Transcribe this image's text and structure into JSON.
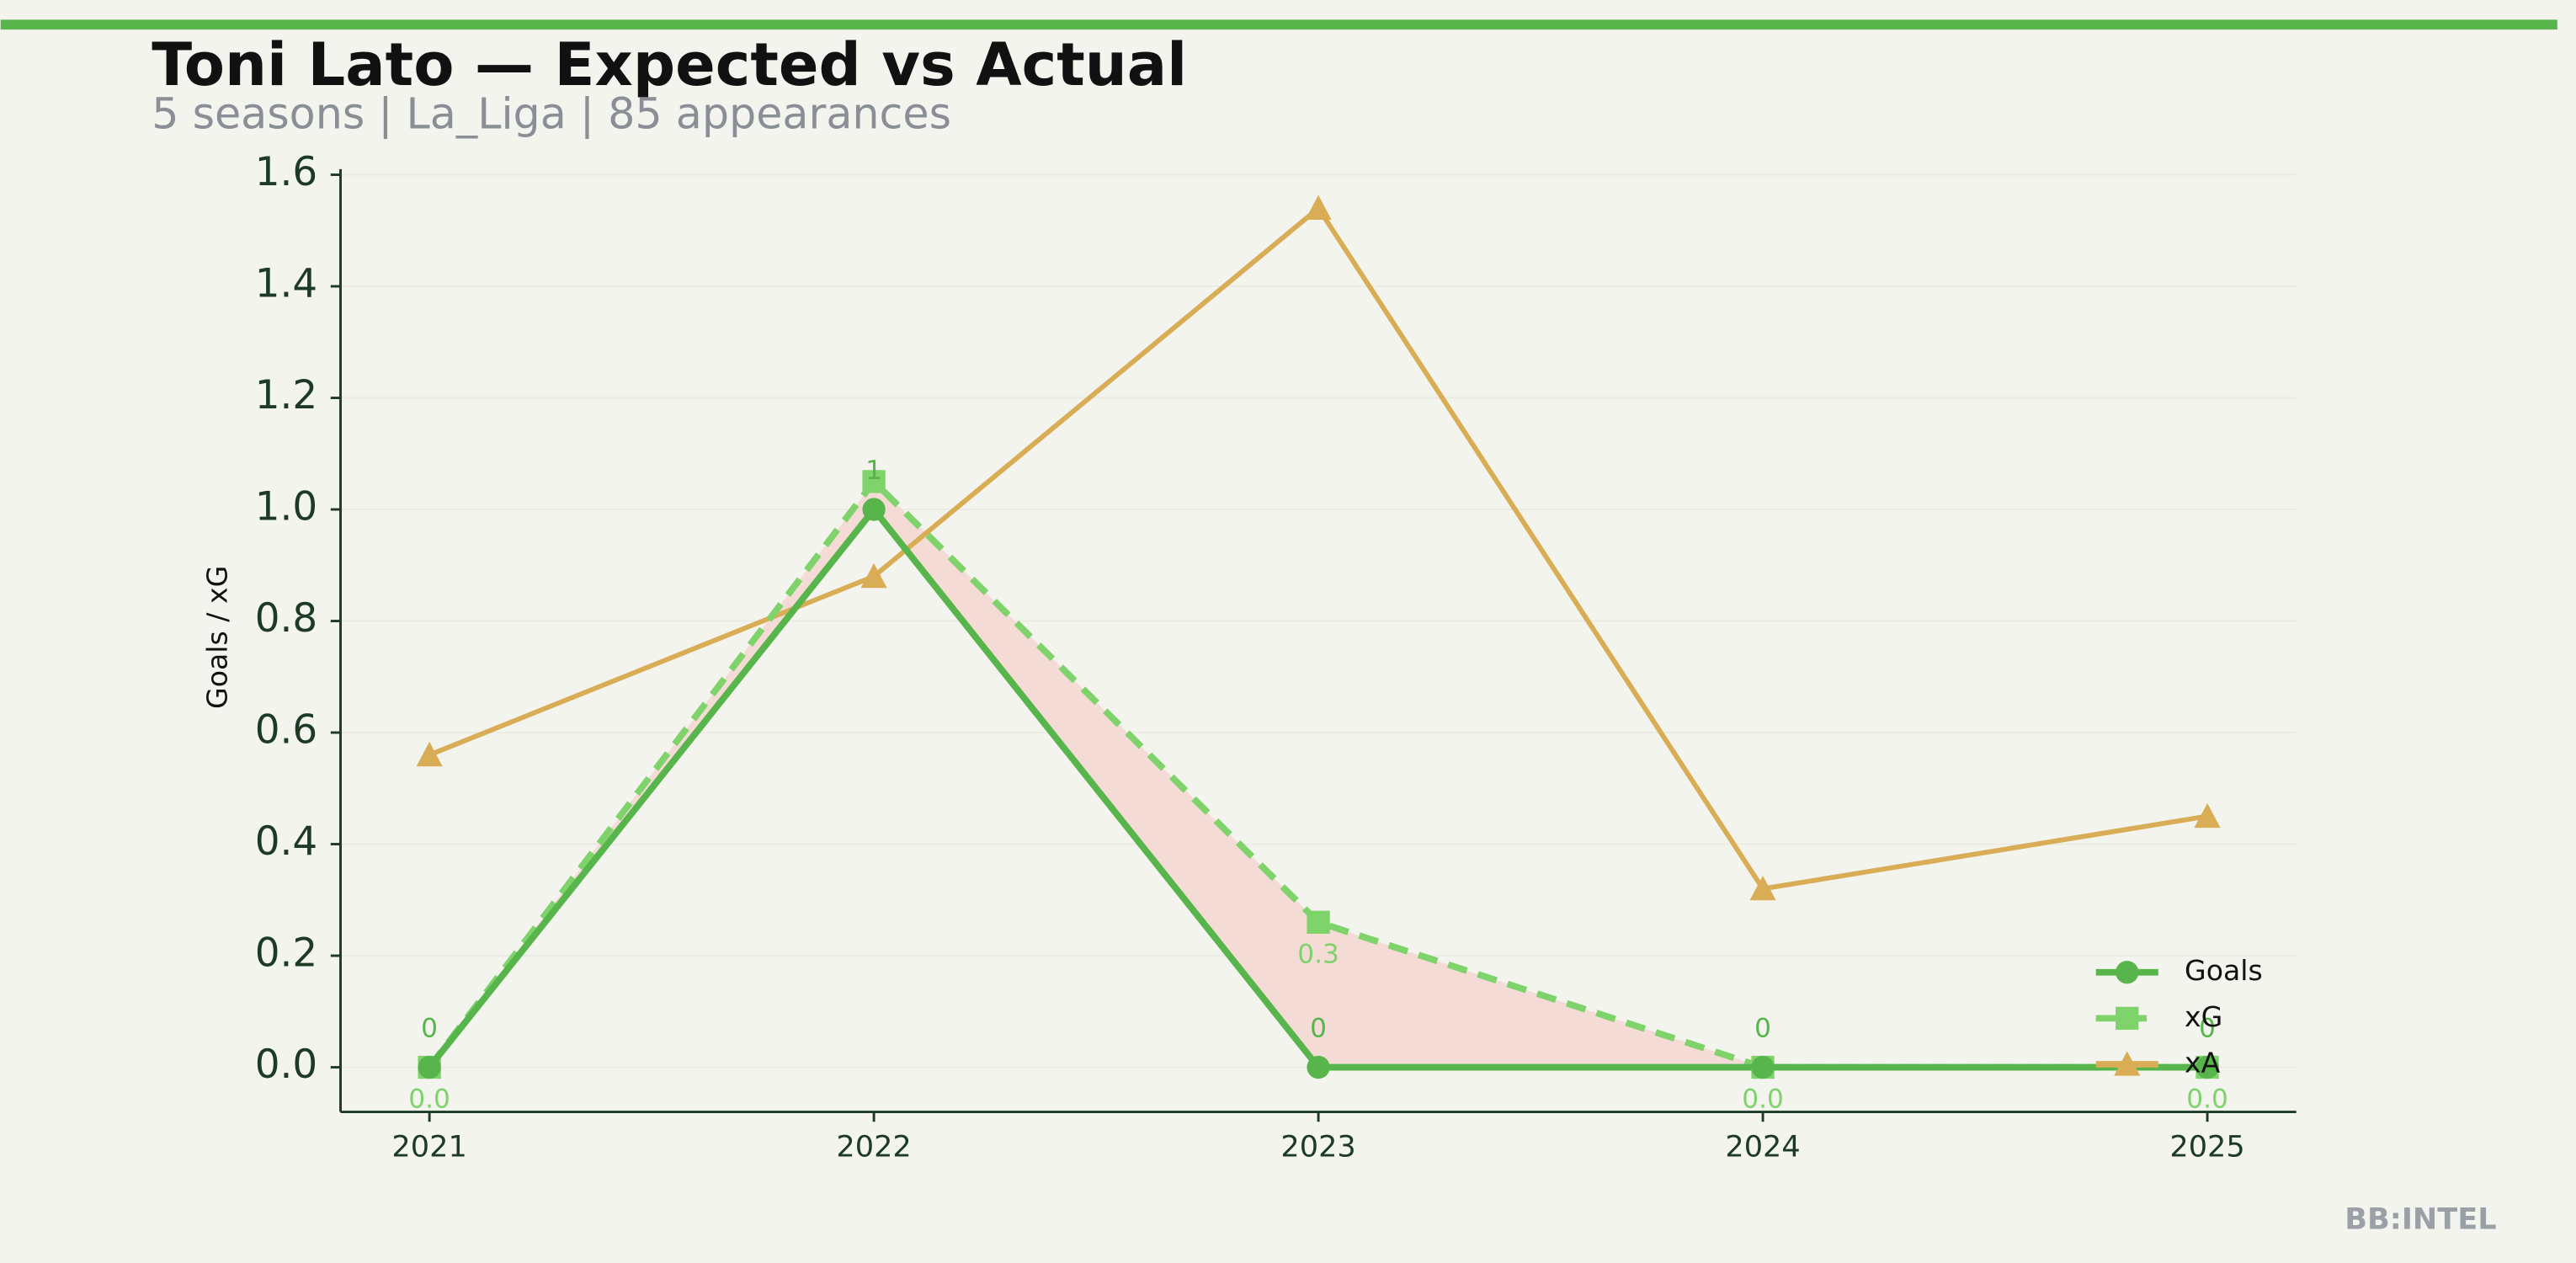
{
  "chart_data": {
    "type": "line",
    "title": "Toni Lato — Expected vs Actual",
    "subtitle": "5 seasons | La_Liga | 85 appearances",
    "ylabel": "Goals / xG",
    "footer": "BB:INTEL",
    "x": [
      2021,
      2022,
      2023,
      2024,
      2025
    ],
    "xlim": [
      2020.8,
      2025.2
    ],
    "xticks": [
      2021,
      2022,
      2023,
      2024,
      2025
    ],
    "ylim": [
      -0.08,
      1.61
    ],
    "yticks": [
      {
        "value": 0,
        "label": "0.0"
      },
      {
        "value": 0.2,
        "label": "0.2"
      },
      {
        "value": 0.4,
        "label": "0.4"
      },
      {
        "value": 0.6,
        "label": "0.6"
      },
      {
        "value": 0.8,
        "label": "0.8"
      },
      {
        "value": 1,
        "label": "1.0"
      },
      {
        "value": 1.2,
        "label": "1.2"
      },
      {
        "value": 1.4,
        "label": "1.4"
      },
      {
        "value": 1.6,
        "label": "1.6"
      }
    ],
    "grid": true,
    "legend": "lower right",
    "series": [
      {
        "name": "Goals",
        "color": "#58b54c",
        "marker": "circle",
        "dash": false,
        "values": [
          0,
          1,
          0,
          0,
          0
        ]
      },
      {
        "name": "xG",
        "color": "#7ed36b",
        "marker": "square",
        "dash": true,
        "values": [
          0,
          1.05,
          0.26,
          0,
          0
        ],
        "value_labels": [
          "0.0",
          null,
          "0.3",
          "0.0",
          "0.0"
        ]
      },
      {
        "name": "xA",
        "color": "#d9ad55",
        "marker": "triangle",
        "dash": false,
        "values": [
          0.56,
          0.88,
          1.54,
          0.32,
          0.45
        ]
      }
    ]
  }
}
